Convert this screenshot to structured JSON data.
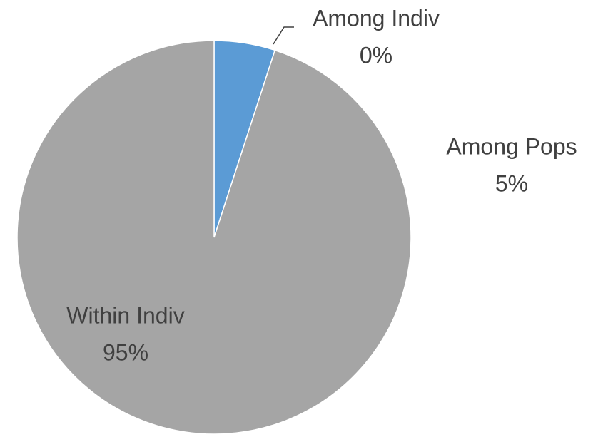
{
  "chart_data": {
    "type": "pie",
    "categories": [
      "Among Pops",
      "Among Indiv",
      "Within Indiv"
    ],
    "values": [
      5,
      0,
      95
    ],
    "value_labels": [
      "5%",
      "0%",
      "95%"
    ],
    "colors": [
      "#5b9bd5",
      "#ed7d31",
      "#a5a5a5"
    ]
  }
}
